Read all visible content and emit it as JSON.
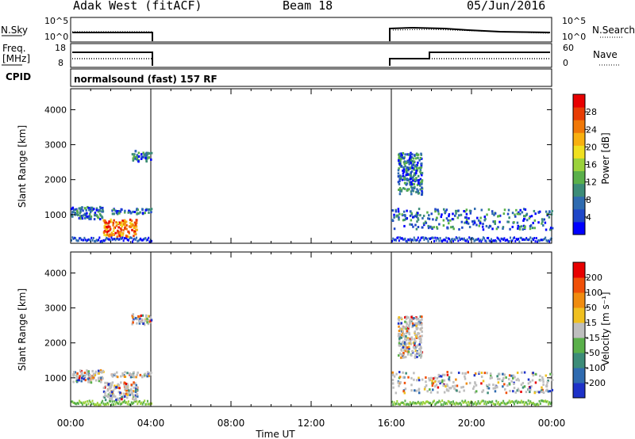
{
  "header": {
    "station": "Adak West (fitACF)",
    "beam": "Beam 18",
    "date": "05/Jun/2016"
  },
  "panels": {
    "nsky_label": "N.Sky",
    "nsearch_label": "N.Search",
    "freq_label_1": "Freq.",
    "freq_label_2": "[MHz]",
    "nave_label": "Nave",
    "cpid_label": "CPID",
    "noise_ticks_left": [
      "10^5",
      "10^0"
    ],
    "noise_ticks_right": [
      "10^5",
      "10^0"
    ],
    "freq_ticks": [
      "18",
      "8"
    ],
    "nave_ticks": [
      "60",
      "0"
    ],
    "cpid_text": "normalsound (fast) 157 RF"
  },
  "chart_data": [
    {
      "type": "heatmap",
      "title": "",
      "xlabel": "",
      "ylabel": "Slant Range [km]",
      "x_range_hours": [
        0,
        24
      ],
      "ylim_km": [
        180,
        4600
      ],
      "y_ticks": [
        "1000",
        "2000",
        "3000",
        "4000"
      ],
      "colorbar": {
        "label": "Power [dB]",
        "ticks": [
          "4",
          "8",
          "12",
          "16",
          "20",
          "24",
          "28"
        ],
        "colors": [
          "#0000ff",
          "#1e46c8",
          "#2f6bb0",
          "#3c8c78",
          "#5ab04a",
          "#9bd23c",
          "#f0e020",
          "#f8b010",
          "#f07808",
          "#e83c04",
          "#e80000"
        ]
      },
      "data_coverage_hours": [
        [
          0.0,
          4.0
        ],
        [
          16.0,
          24.0
        ]
      ],
      "echo_regions": [
        {
          "t": [
            0.0,
            1.6
          ],
          "range_km": [
            900,
            1250
          ],
          "level": "10-16 dB"
        },
        {
          "t": [
            1.6,
            3.3
          ],
          "range_km": [
            400,
            900
          ],
          "level": "20-30 dB"
        },
        {
          "t": [
            2.0,
            4.0
          ],
          "range_km": [
            1050,
            1200
          ],
          "level": "8-12 dB"
        },
        {
          "t": [
            3.0,
            4.0
          ],
          "range_km": [
            2550,
            2850
          ],
          "level": "8-12 dB"
        },
        {
          "t": [
            16.0,
            24.0
          ],
          "range_km": [
            600,
            1200
          ],
          "level": "8-20 dB"
        },
        {
          "t": [
            16.3,
            17.5
          ],
          "range_km": [
            1600,
            2800
          ],
          "level": "8-16 dB"
        }
      ]
    },
    {
      "type": "heatmap",
      "title": "",
      "xlabel": "Time UT",
      "ylabel": "Slant Range [km]",
      "x_range_hours": [
        0,
        24
      ],
      "ylim_km": [
        180,
        4600
      ],
      "x_ticks": [
        "00:00",
        "04:00",
        "08:00",
        "12:00",
        "16:00",
        "20:00",
        "00:00"
      ],
      "y_ticks": [
        "1000",
        "2000",
        "3000",
        "4000"
      ],
      "colorbar": {
        "label": "Velocity [m s^-1]",
        "ticks": [
          "200",
          "100",
          "50",
          "15",
          "-15",
          "-50",
          "-100",
          "-200"
        ],
        "colors": [
          "#1e32c8",
          "#2f6bb0",
          "#3c8c78",
          "#5ab04a",
          "#bebebe",
          "#f0c020",
          "#f08c10",
          "#f05008",
          "#e80000"
        ]
      },
      "data_coverage_hours": [
        [
          0.0,
          4.0
        ],
        [
          16.0,
          24.0
        ]
      ]
    }
  ]
}
